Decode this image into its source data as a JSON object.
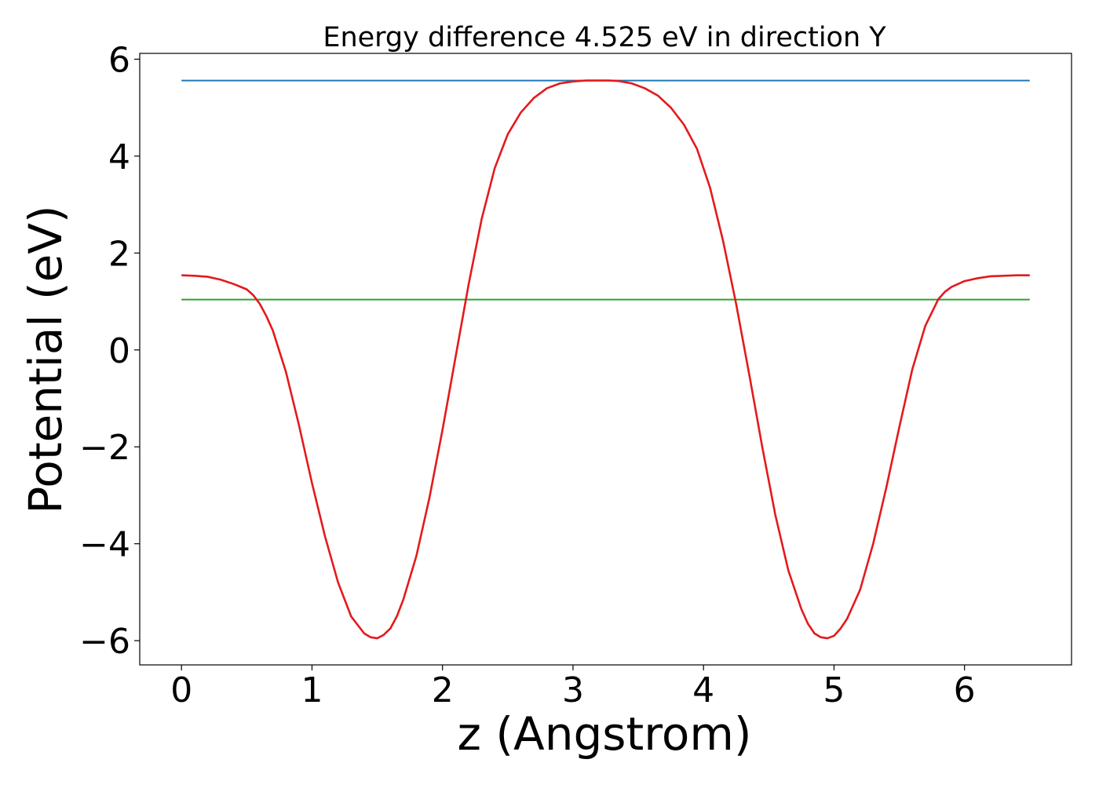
{
  "chart_data": {
    "type": "line",
    "title": "Energy difference 4.525 eV in direction Y",
    "xlabel": "z (Angstrom)",
    "ylabel": "Potential (eV)",
    "xlim": [
      -0.32,
      6.82
    ],
    "ylim": [
      -6.5,
      6.12
    ],
    "xticks": [
      0,
      1,
      2,
      3,
      4,
      5,
      6
    ],
    "yticks": [
      6,
      4,
      2,
      0,
      -2,
      -4,
      -6
    ],
    "xtick_labels": [
      "0",
      "1",
      "2",
      "3",
      "4",
      "5",
      "6"
    ],
    "ytick_labels": [
      "6",
      "4",
      "2",
      "0",
      "−2",
      "−4",
      "−6"
    ],
    "grid": false,
    "series": [
      {
        "color": "#1f77b4",
        "style": "hline",
        "x": [
          0,
          6.5
        ],
        "y": [
          5.56,
          5.56
        ]
      },
      {
        "color": "#2ca02c",
        "style": "hline",
        "x": [
          0,
          6.5
        ],
        "y": [
          1.04,
          1.04
        ]
      },
      {
        "color": "#e31a1c",
        "style": "curve",
        "x": [
          0,
          0.1,
          0.2,
          0.3,
          0.4,
          0.5,
          0.55,
          0.6,
          0.65,
          0.7,
          0.8,
          0.9,
          1.0,
          1.1,
          1.2,
          1.3,
          1.4,
          1.45,
          1.5,
          1.55,
          1.6,
          1.65,
          1.7,
          1.8,
          1.9,
          2.0,
          2.1,
          2.2,
          2.3,
          2.4,
          2.5,
          2.6,
          2.7,
          2.8,
          2.9,
          3.0,
          3.1,
          3.2,
          3.27,
          3.35,
          3.45,
          3.55,
          3.65,
          3.75,
          3.85,
          3.95,
          4.05,
          4.15,
          4.25,
          4.35,
          4.45,
          4.55,
          4.65,
          4.75,
          4.8,
          4.85,
          4.9,
          4.95,
          5.0,
          5.05,
          5.1,
          5.2,
          5.3,
          5.4,
          5.5,
          5.6,
          5.7,
          5.8,
          5.85,
          5.9,
          5.95,
          6.0,
          6.1,
          6.2,
          6.3,
          6.4,
          6.5
        ],
        "y": [
          1.54,
          1.53,
          1.51,
          1.45,
          1.36,
          1.25,
          1.13,
          0.95,
          0.7,
          0.4,
          -0.45,
          -1.55,
          -2.75,
          -3.85,
          -4.8,
          -5.5,
          -5.85,
          -5.93,
          -5.95,
          -5.88,
          -5.75,
          -5.5,
          -5.15,
          -4.25,
          -3.05,
          -1.65,
          -0.15,
          1.35,
          2.7,
          3.75,
          4.45,
          4.9,
          5.2,
          5.4,
          5.5,
          5.54,
          5.56,
          5.56,
          5.56,
          5.55,
          5.5,
          5.4,
          5.25,
          5.0,
          4.65,
          4.15,
          3.35,
          2.25,
          0.95,
          -0.5,
          -2.0,
          -3.4,
          -4.55,
          -5.35,
          -5.65,
          -5.85,
          -5.93,
          -5.95,
          -5.9,
          -5.75,
          -5.55,
          -4.95,
          -4.0,
          -2.85,
          -1.6,
          -0.4,
          0.5,
          1.05,
          1.2,
          1.3,
          1.36,
          1.42,
          1.48,
          1.52,
          1.53,
          1.54,
          1.54
        ]
      }
    ]
  }
}
